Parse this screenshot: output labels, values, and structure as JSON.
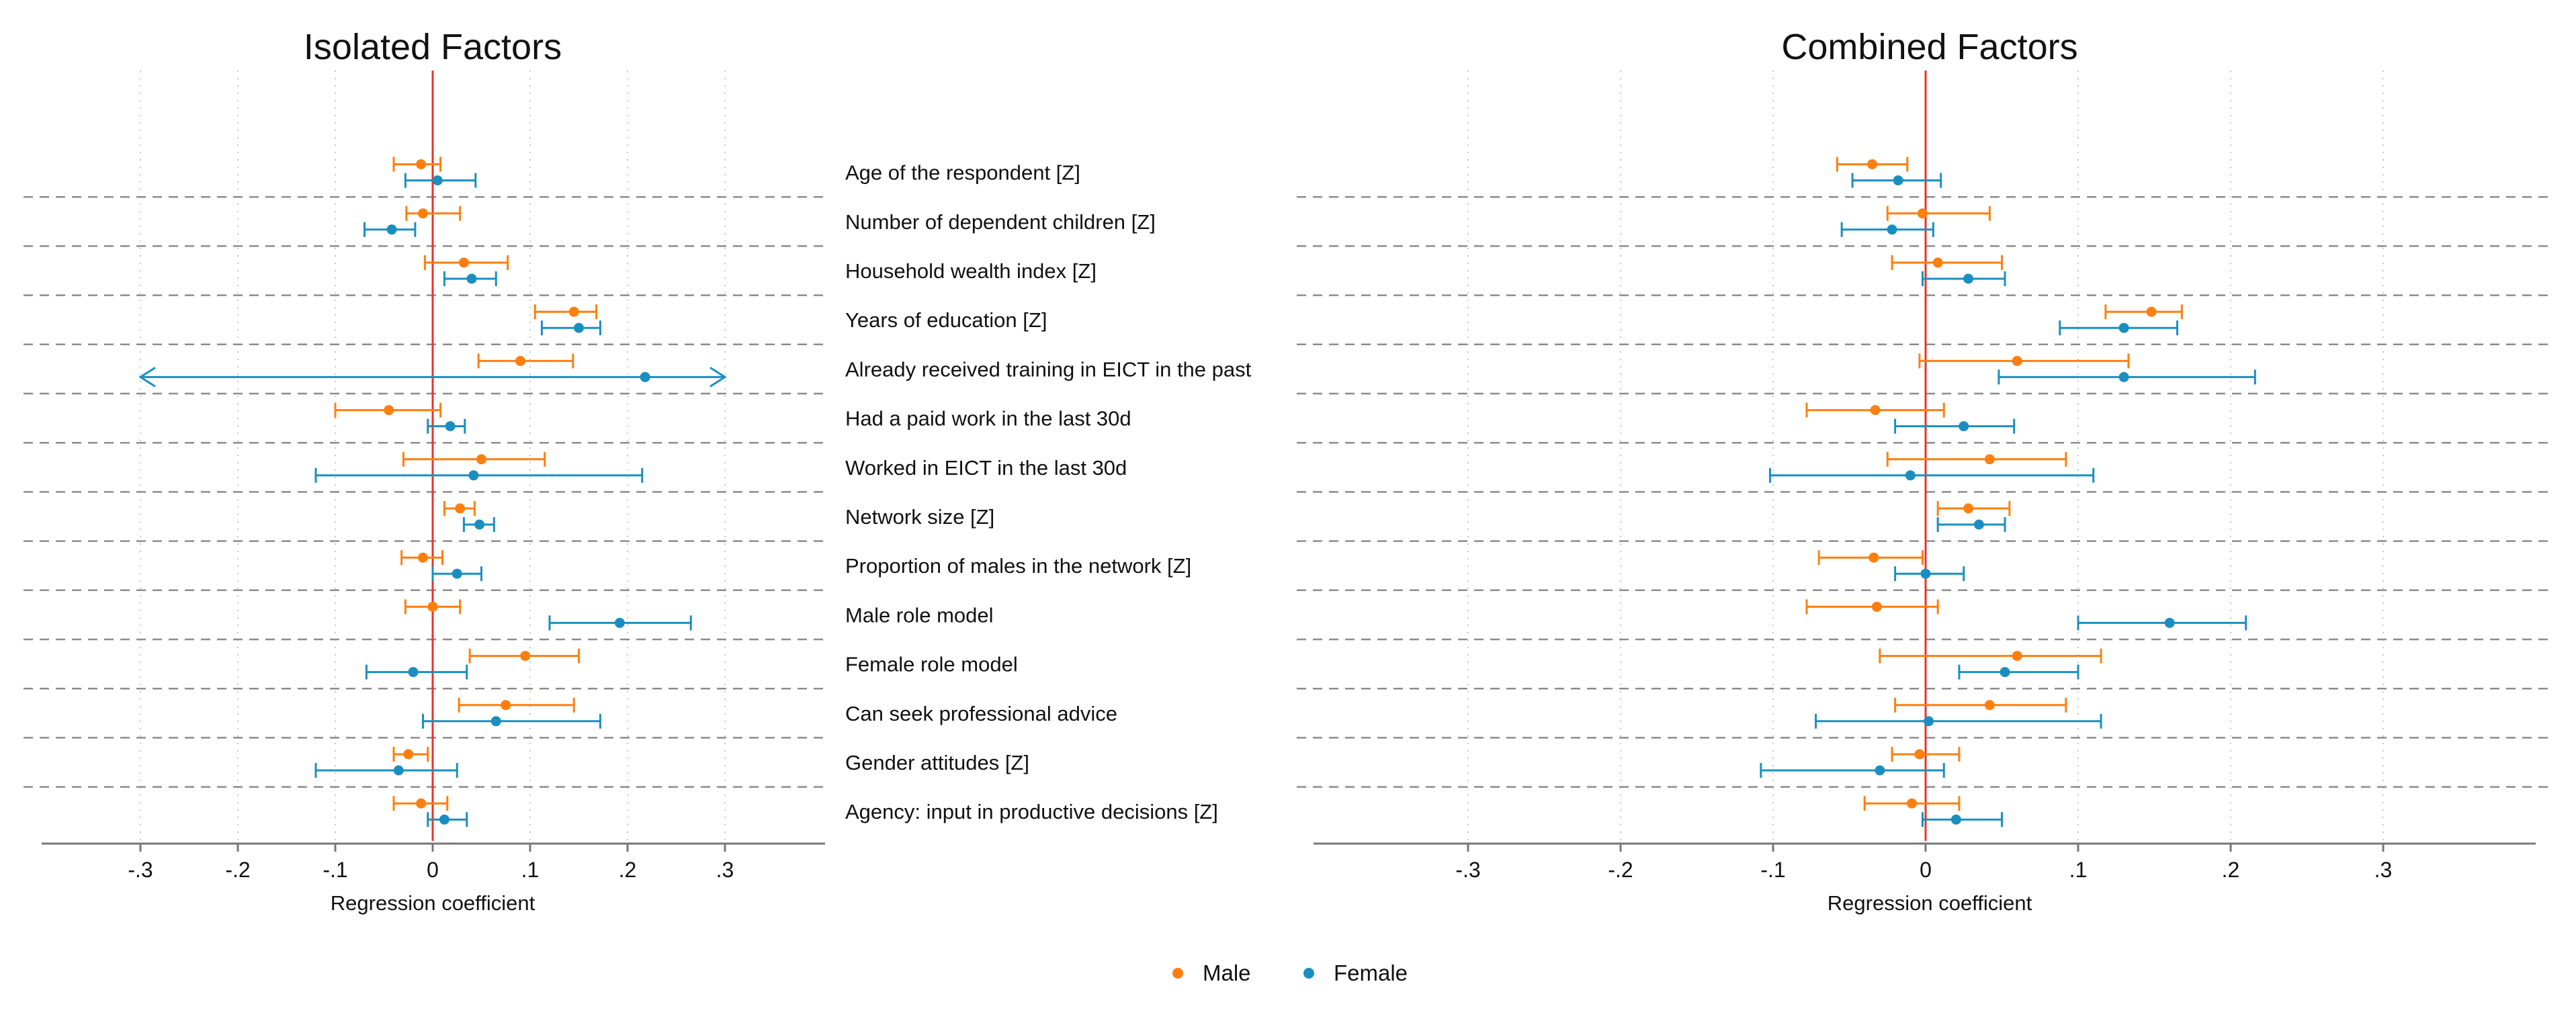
{
  "chart_data": [
    {
      "type": "coefficient-plot",
      "title": "Isolated Factors",
      "xlabel": "Regression coefficient",
      "xlim": [
        -0.4,
        0.4
      ],
      "xticks": [
        -0.3,
        -0.2,
        -0.1,
        0,
        0.1,
        0.2,
        0.3
      ],
      "xtick_labels": [
        "-.3",
        "-.2",
        "-.1",
        "0",
        ".1",
        ".2",
        ".3"
      ],
      "grid": "vertical dotted",
      "categories": [
        "Age of the respondent [Z]",
        "Number of dependent children [Z]",
        "Household wealth index [Z]",
        "Years of education [Z]",
        "Already received training in EICT in the past",
        "Had a paid work in the last 30d",
        "Worked in EICT in the last 30d",
        "Network size [Z]",
        "Proportion of males in the network [Z]",
        "Male role model",
        "Female role model",
        "Can seek professional advice",
        "Gender attitudes [Z]",
        "Agency: input in productive decisions [Z]"
      ],
      "series": [
        {
          "name": "Male",
          "estimate": [
            -0.012,
            -0.01,
            0.032,
            0.145,
            0.09,
            -0.045,
            0.05,
            0.028,
            -0.01,
            0.0,
            0.095,
            0.075,
            -0.025,
            -0.012
          ],
          "lower": [
            -0.04,
            -0.027,
            -0.008,
            0.105,
            0.047,
            -0.1,
            -0.03,
            0.012,
            -0.032,
            -0.028,
            0.038,
            0.027,
            -0.04,
            -0.04
          ],
          "upper": [
            0.008,
            0.028,
            0.077,
            0.168,
            0.144,
            0.008,
            0.115,
            0.043,
            0.01,
            0.028,
            0.15,
            0.145,
            -0.005,
            0.015
          ]
        },
        {
          "name": "Female",
          "estimate": [
            0.005,
            -0.042,
            0.04,
            0.15,
            0.218,
            0.018,
            0.042,
            0.048,
            0.025,
            0.192,
            -0.02,
            0.065,
            -0.035,
            0.012
          ],
          "lower": [
            -0.028,
            -0.07,
            0.012,
            0.112,
            -0.3,
            -0.005,
            -0.12,
            0.032,
            0.0,
            0.12,
            -0.068,
            -0.01,
            -0.12,
            -0.005
          ],
          "upper": [
            0.044,
            -0.018,
            0.065,
            0.172,
            0.3,
            0.033,
            0.215,
            0.063,
            0.05,
            0.265,
            0.035,
            0.172,
            0.025,
            0.035
          ],
          "truncated_lower": [
            false,
            false,
            false,
            false,
            true,
            false,
            false,
            false,
            false,
            false,
            false,
            false,
            false,
            false
          ],
          "truncated_upper": [
            false,
            false,
            false,
            false,
            true,
            false,
            false,
            false,
            false,
            false,
            false,
            false,
            false,
            false
          ]
        }
      ]
    },
    {
      "type": "coefficient-plot",
      "title": "Combined Factors",
      "xlabel": "Regression coefficient",
      "xlim": [
        -0.4,
        0.4
      ],
      "xticks": [
        -0.3,
        -0.2,
        -0.1,
        0,
        0.1,
        0.2,
        0.3
      ],
      "xtick_labels": [
        "-.3",
        "-.2",
        "-.1",
        "0",
        ".1",
        ".2",
        ".3"
      ],
      "grid": "vertical dotted",
      "categories": [
        "Age of the respondent [Z]",
        "Number of dependent children [Z]",
        "Household wealth index [Z]",
        "Years of education [Z]",
        "Already received training in EICT in the past",
        "Had a paid work in the last 30d",
        "Worked in EICT in the last 30d",
        "Network size [Z]",
        "Proportion of males in the network [Z]",
        "Male role model",
        "Female role model",
        "Can seek professional advice",
        "Gender attitudes [Z]",
        "Agency: input in productive decisions [Z]"
      ],
      "series": [
        {
          "name": "Male",
          "estimate": [
            -0.035,
            -0.002,
            0.008,
            0.148,
            0.06,
            -0.033,
            0.042,
            0.028,
            -0.034,
            -0.032,
            0.06,
            0.042,
            -0.004,
            -0.009
          ],
          "lower": [
            -0.058,
            -0.025,
            -0.022,
            0.118,
            -0.004,
            -0.078,
            -0.025,
            0.008,
            -0.07,
            -0.078,
            -0.03,
            -0.02,
            -0.022,
            -0.04
          ],
          "upper": [
            -0.012,
            0.042,
            0.05,
            0.168,
            0.133,
            0.012,
            0.092,
            0.055,
            -0.002,
            0.008,
            0.115,
            0.092,
            0.022,
            0.022
          ]
        },
        {
          "name": "Female",
          "estimate": [
            -0.018,
            -0.022,
            0.028,
            0.13,
            0.13,
            0.025,
            -0.01,
            0.035,
            0.0,
            0.16,
            0.052,
            0.002,
            -0.03,
            0.02
          ],
          "lower": [
            -0.048,
            -0.055,
            -0.002,
            0.088,
            0.048,
            -0.02,
            -0.102,
            0.008,
            -0.02,
            0.1,
            0.022,
            -0.072,
            -0.108,
            -0.002
          ],
          "upper": [
            0.01,
            0.005,
            0.052,
            0.165,
            0.216,
            0.058,
            0.11,
            0.052,
            0.025,
            0.21,
            0.1,
            0.115,
            0.012,
            0.05
          ]
        }
      ]
    }
  ],
  "legend": {
    "position": "bottom-center",
    "items": [
      {
        "label": "Male",
        "color": "#ff7f0e"
      },
      {
        "label": "Female",
        "color": "#1a8fbf"
      }
    ]
  },
  "colors": {
    "male": "#ff7f0e",
    "female": "#1a8fbf",
    "zero_line": "#e8332a",
    "separator": "#8c8c8c",
    "grid": "#c8c8c8",
    "axis": "#777777",
    "text": "#111111"
  }
}
